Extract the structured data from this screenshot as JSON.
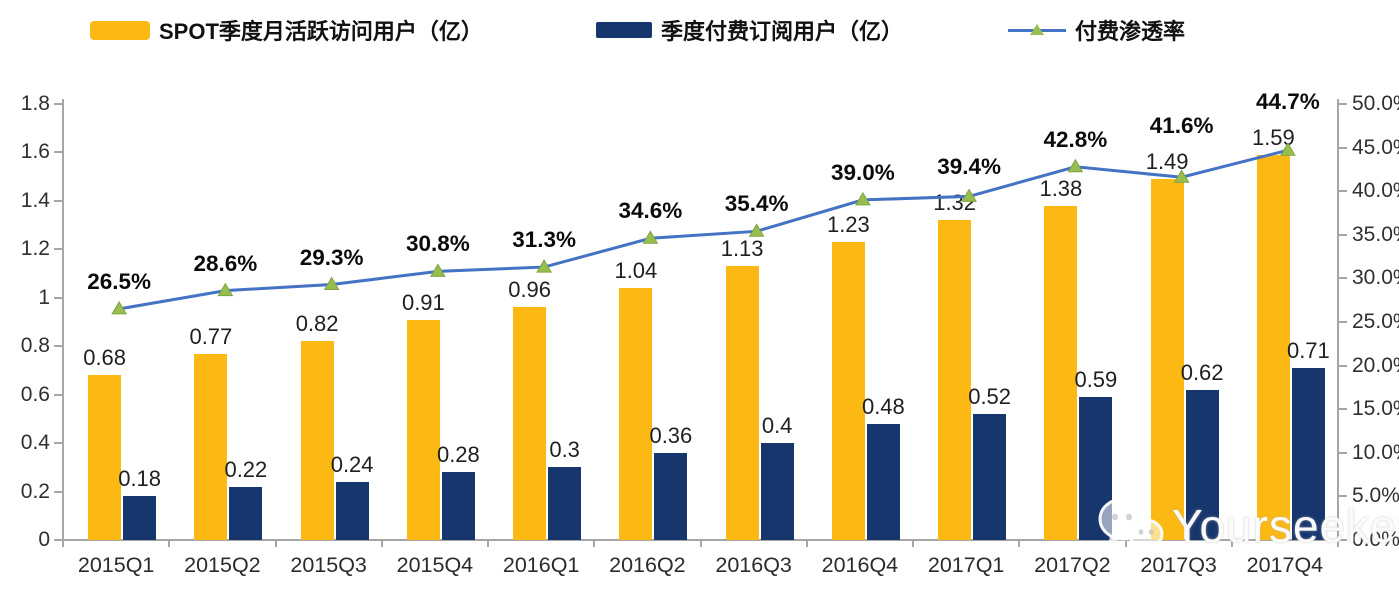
{
  "legend": {
    "mau_label": "SPOT季度月活跃访问用户（亿）",
    "subs_label": "季度付费订阅用户（亿）",
    "penetration_label": "付费渗透率"
  },
  "watermark": {
    "icon": "wechat-icon",
    "text": "Yourseeker"
  },
  "chart_data": {
    "type": "bar",
    "subtype": "grouped-bars-with-line",
    "title": "",
    "categories": [
      "2015Q1",
      "2015Q2",
      "2015Q3",
      "2015Q4",
      "2016Q1",
      "2016Q2",
      "2016Q3",
      "2016Q4",
      "2017Q1",
      "2017Q2",
      "2017Q3",
      "2017Q4"
    ],
    "series": [
      {
        "name": "SPOT季度月活跃访问用户（亿）",
        "type": "bar",
        "axis": "left",
        "color": "#FCB813",
        "values": [
          0.68,
          0.77,
          0.82,
          0.91,
          0.96,
          1.04,
          1.13,
          1.23,
          1.32,
          1.38,
          1.49,
          1.59
        ],
        "labels": [
          "0.68",
          "0.77",
          "0.82",
          "0.91",
          "0.96",
          "1.04",
          "1.13",
          "1.23",
          "1.32",
          "1.38",
          "1.49",
          "1.59"
        ]
      },
      {
        "name": "季度付费订阅用户（亿）",
        "type": "bar",
        "axis": "left",
        "color": "#17366D",
        "values": [
          0.18,
          0.22,
          0.24,
          0.28,
          0.3,
          0.36,
          0.4,
          0.48,
          0.52,
          0.59,
          0.62,
          0.71
        ],
        "labels": [
          "0.18",
          "0.22",
          "0.24",
          "0.28",
          "0.3",
          "0.36",
          "0.4",
          "0.48",
          "0.52",
          "0.59",
          "0.62",
          "0.71"
        ]
      },
      {
        "name": "付费渗透率",
        "type": "line",
        "axis": "right",
        "color": "#4472C4",
        "marker": "triangle",
        "marker_color": "#97BE4F",
        "marker_edge": "#7fa446",
        "values": [
          26.5,
          28.6,
          29.3,
          30.8,
          31.3,
          34.6,
          35.4,
          39.0,
          39.4,
          42.8,
          41.6,
          44.7
        ],
        "labels": [
          "26.5%",
          "28.6%",
          "29.3%",
          "30.8%",
          "31.3%",
          "34.6%",
          "35.4%",
          "39.0%",
          "39.4%",
          "42.8%",
          "41.6%",
          "44.7%"
        ]
      }
    ],
    "left_axis": {
      "min": 0,
      "max": 1.8,
      "step": 0.2,
      "ticks": [
        "0",
        "0.2",
        "0.4",
        "0.6",
        "0.8",
        "1",
        "1.2",
        "1.4",
        "1.6",
        "1.8"
      ]
    },
    "right_axis": {
      "min": 0,
      "max": 50,
      "step": 5,
      "ticks": [
        "0.0%",
        "5.0%",
        "10.0%",
        "15.0%",
        "20.0%",
        "25.0%",
        "30.0%",
        "35.0%",
        "40.0%",
        "45.0%",
        "50.0%"
      ]
    },
    "grid": false,
    "legend_position": "top",
    "axis_color": "#a6a6a6"
  }
}
